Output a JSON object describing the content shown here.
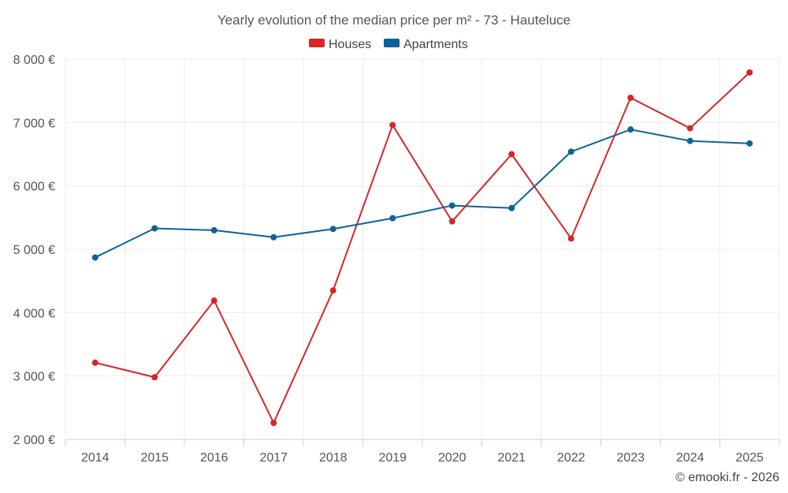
{
  "chart_data": {
    "type": "line",
    "title": "Yearly evolution of the median price per m² - 73 - Hauteluce",
    "xlabel": "",
    "ylabel": "",
    "categories": [
      "2014",
      "2015",
      "2016",
      "2017",
      "2018",
      "2019",
      "2020",
      "2021",
      "2022",
      "2023",
      "2024",
      "2025"
    ],
    "ylim": [
      2000,
      8000
    ],
    "yticks": [
      2000,
      3000,
      4000,
      5000,
      6000,
      7000,
      8000
    ],
    "ytick_labels": [
      "2 000 €",
      "3 000 €",
      "4 000 €",
      "5 000 €",
      "6 000 €",
      "7 000 €",
      "8 000 €"
    ],
    "grid": true,
    "legend_position": "top-center",
    "series": [
      {
        "name": "Houses",
        "color": "#d62728",
        "values": [
          3210,
          2980,
          4190,
          2260,
          4350,
          6960,
          5440,
          6500,
          5170,
          7390,
          6910,
          7790
        ]
      },
      {
        "name": "Apartments",
        "color": "#0e6396",
        "values": [
          4870,
          5330,
          5300,
          5190,
          5320,
          5490,
          5690,
          5650,
          6540,
          6890,
          6710,
          6670
        ]
      }
    ]
  },
  "credit": "© emooki.fr - 2026"
}
